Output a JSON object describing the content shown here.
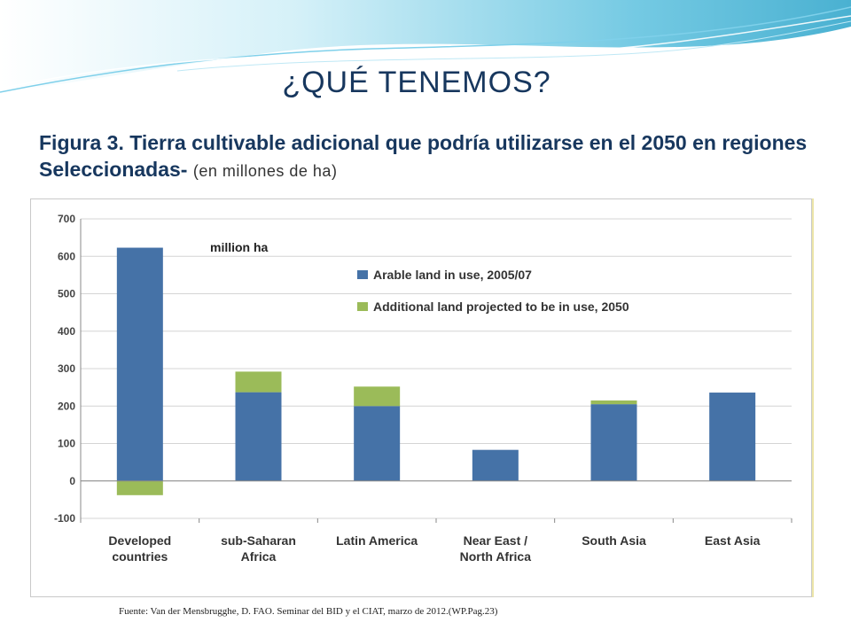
{
  "slide": {
    "title": "¿QUÉ TENEMOS?",
    "caption_main": "Figura 3. Tierra cultivable adicional que podría utilizarse en el 2050 en regiones Seleccionadas-",
    "caption_units": "(en millones de ha)",
    "source": "Fuente: Van der Mensbrugghe, D. FAO. Seminar del BID y el CIAT, marzo de 2012.(WP.Pag.23)"
  },
  "colors": {
    "accent_text": "#17375e",
    "series_arable": "#4572a7",
    "series_additional": "#9bbb59",
    "header_wave": "#5bc0de"
  },
  "chart_data": {
    "type": "bar",
    "stacked": true,
    "unit_label": "million ha",
    "categories": [
      [
        "Developed",
        "countries"
      ],
      [
        "sub-Saharan",
        "Africa"
      ],
      [
        "Latin America"
      ],
      [
        "Near East /",
        "North Africa"
      ],
      [
        "South Asia"
      ],
      [
        "East Asia"
      ]
    ],
    "series": [
      {
        "name": "Arable land in use, 2005/07",
        "color": "#4572a7",
        "values": [
          623,
          237,
          200,
          83,
          205,
          236
        ]
      },
      {
        "name": "Additional land projected to be in use, 2050",
        "color": "#9bbb59",
        "values": [
          -38,
          55,
          52,
          0,
          10,
          0
        ]
      }
    ],
    "ylim": [
      -100,
      700
    ],
    "yticks": [
      700,
      600,
      500,
      400,
      300,
      200,
      100,
      0,
      -100
    ],
    "grid": true,
    "legend_position": "top-right"
  }
}
